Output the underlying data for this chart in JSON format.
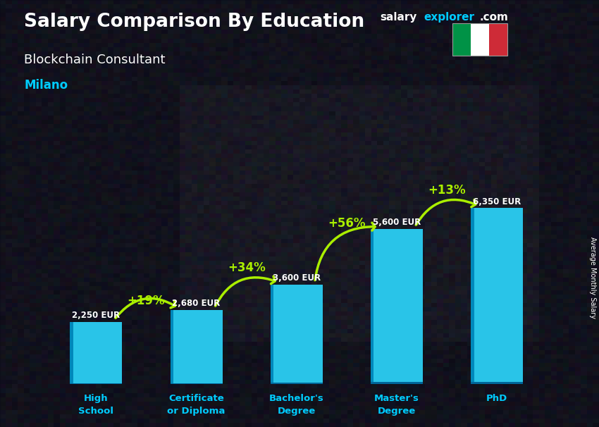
{
  "title": "Salary Comparison By Education",
  "subtitle": "Blockchain Consultant",
  "city": "Milano",
  "ylabel": "Average Monthly Salary",
  "categories": [
    "High\nSchool",
    "Certificate\nor Diploma",
    "Bachelor's\nDegree",
    "Master's\nDegree",
    "PhD"
  ],
  "values": [
    2250,
    2680,
    3600,
    5600,
    6350
  ],
  "labels": [
    "2,250 EUR",
    "2,680 EUR",
    "3,600 EUR",
    "5,600 EUR",
    "6,350 EUR"
  ],
  "pct_labels": [
    "+19%",
    "+34%",
    "+56%",
    "+13%"
  ],
  "bar_color": "#29c4e8",
  "bar_edge_color": "#00aacc",
  "bg_color": "#111122",
  "title_color": "#ffffff",
  "subtitle_color": "#ffffff",
  "city_color": "#00ccff",
  "label_color": "#ffffff",
  "pct_color": "#aaee00",
  "arrow_color": "#aaee00",
  "xtick_color": "#00ccff",
  "ylim": [
    0,
    8000
  ],
  "figsize": [
    8.5,
    6.06
  ],
  "dpi": 100,
  "bar_width": 0.52,
  "flag_colors": [
    "#009246",
    "#ffffff",
    "#CE2B37"
  ],
  "website_salary_color": "#ffffff",
  "website_explorer_color": "#00ccff",
  "website_com_color": "#ffffff"
}
